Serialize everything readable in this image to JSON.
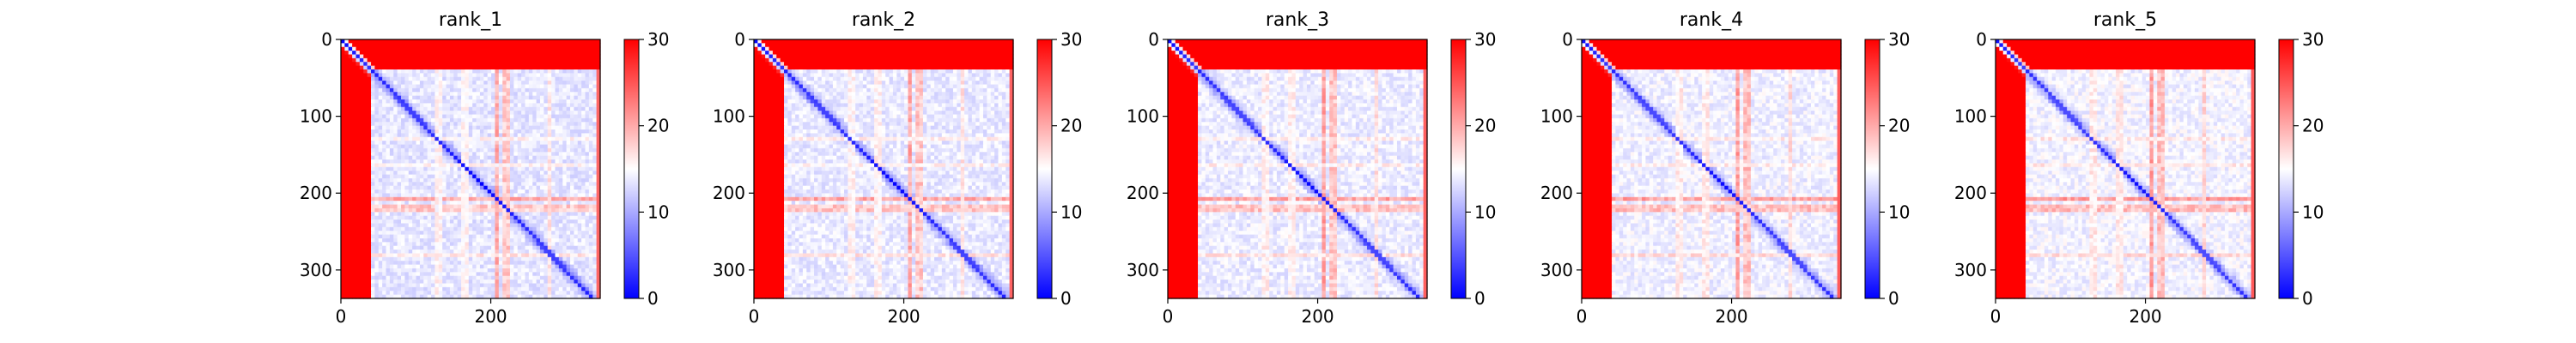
{
  "chart_data": [
    {
      "type": "heatmap",
      "title": "rank_1",
      "xlim": [
        0,
        346
      ],
      "ylim": [
        337,
        0
      ],
      "xticks": [
        0,
        200
      ],
      "yticks": [
        0,
        100,
        200,
        300
      ],
      "colorbar": {
        "min": 0,
        "max": 30,
        "ticks": [
          0,
          10,
          20,
          30
        ],
        "colormap": "bwr"
      },
      "low_color": "#0000ff",
      "mid_color": "#ffffff",
      "high_color": "#ff0000",
      "description_values": {
        "diagonal": 0,
        "n_terminal_region_end": 40,
        "off_domain": 30
      },
      "grid": false
    },
    {
      "type": "heatmap",
      "title": "rank_2",
      "xlim": [
        0,
        346
      ],
      "ylim": [
        337,
        0
      ],
      "xticks": [
        0,
        200
      ],
      "yticks": [
        0,
        100,
        200,
        300
      ],
      "colorbar": {
        "min": 0,
        "max": 30,
        "ticks": [
          0,
          10,
          20,
          30
        ],
        "colormap": "bwr"
      },
      "low_color": "#0000ff",
      "mid_color": "#ffffff",
      "high_color": "#ff0000",
      "description_values": {
        "diagonal": 0,
        "n_terminal_region_end": 40,
        "off_domain": 30
      },
      "grid": false
    },
    {
      "type": "heatmap",
      "title": "rank_3",
      "xlim": [
        0,
        346
      ],
      "ylim": [
        337,
        0
      ],
      "xticks": [
        0,
        200
      ],
      "yticks": [
        0,
        100,
        200,
        300
      ],
      "colorbar": {
        "min": 0,
        "max": 30,
        "ticks": [
          0,
          10,
          20,
          30
        ],
        "colormap": "bwr"
      },
      "low_color": "#0000ff",
      "mid_color": "#ffffff",
      "high_color": "#ff0000",
      "description_values": {
        "diagonal": 0,
        "n_terminal_region_end": 40,
        "off_domain": 30
      },
      "grid": false
    },
    {
      "type": "heatmap",
      "title": "rank_4",
      "xlim": [
        0,
        346
      ],
      "ylim": [
        337,
        0
      ],
      "xticks": [
        0,
        200
      ],
      "yticks": [
        0,
        100,
        200,
        300
      ],
      "colorbar": {
        "min": 0,
        "max": 30,
        "ticks": [
          0,
          10,
          20,
          30
        ],
        "colormap": "bwr"
      },
      "low_color": "#0000ff",
      "mid_color": "#ffffff",
      "high_color": "#ff0000",
      "description_values": {
        "diagonal": 0,
        "n_terminal_region_end": 40,
        "off_domain": 30
      },
      "grid": false
    },
    {
      "type": "heatmap",
      "title": "rank_5",
      "xlim": [
        0,
        346
      ],
      "ylim": [
        337,
        0
      ],
      "xticks": [
        0,
        200
      ],
      "yticks": [
        0,
        100,
        200,
        300
      ],
      "colorbar": {
        "min": 0,
        "max": 30,
        "ticks": [
          0,
          10,
          20,
          30
        ],
        "colormap": "bwr"
      },
      "low_color": "#0000ff",
      "mid_color": "#ffffff",
      "high_color": "#ff0000",
      "description_values": {
        "diagonal": 0,
        "n_terminal_region_end": 40,
        "off_domain": 30
      },
      "grid": false
    }
  ]
}
